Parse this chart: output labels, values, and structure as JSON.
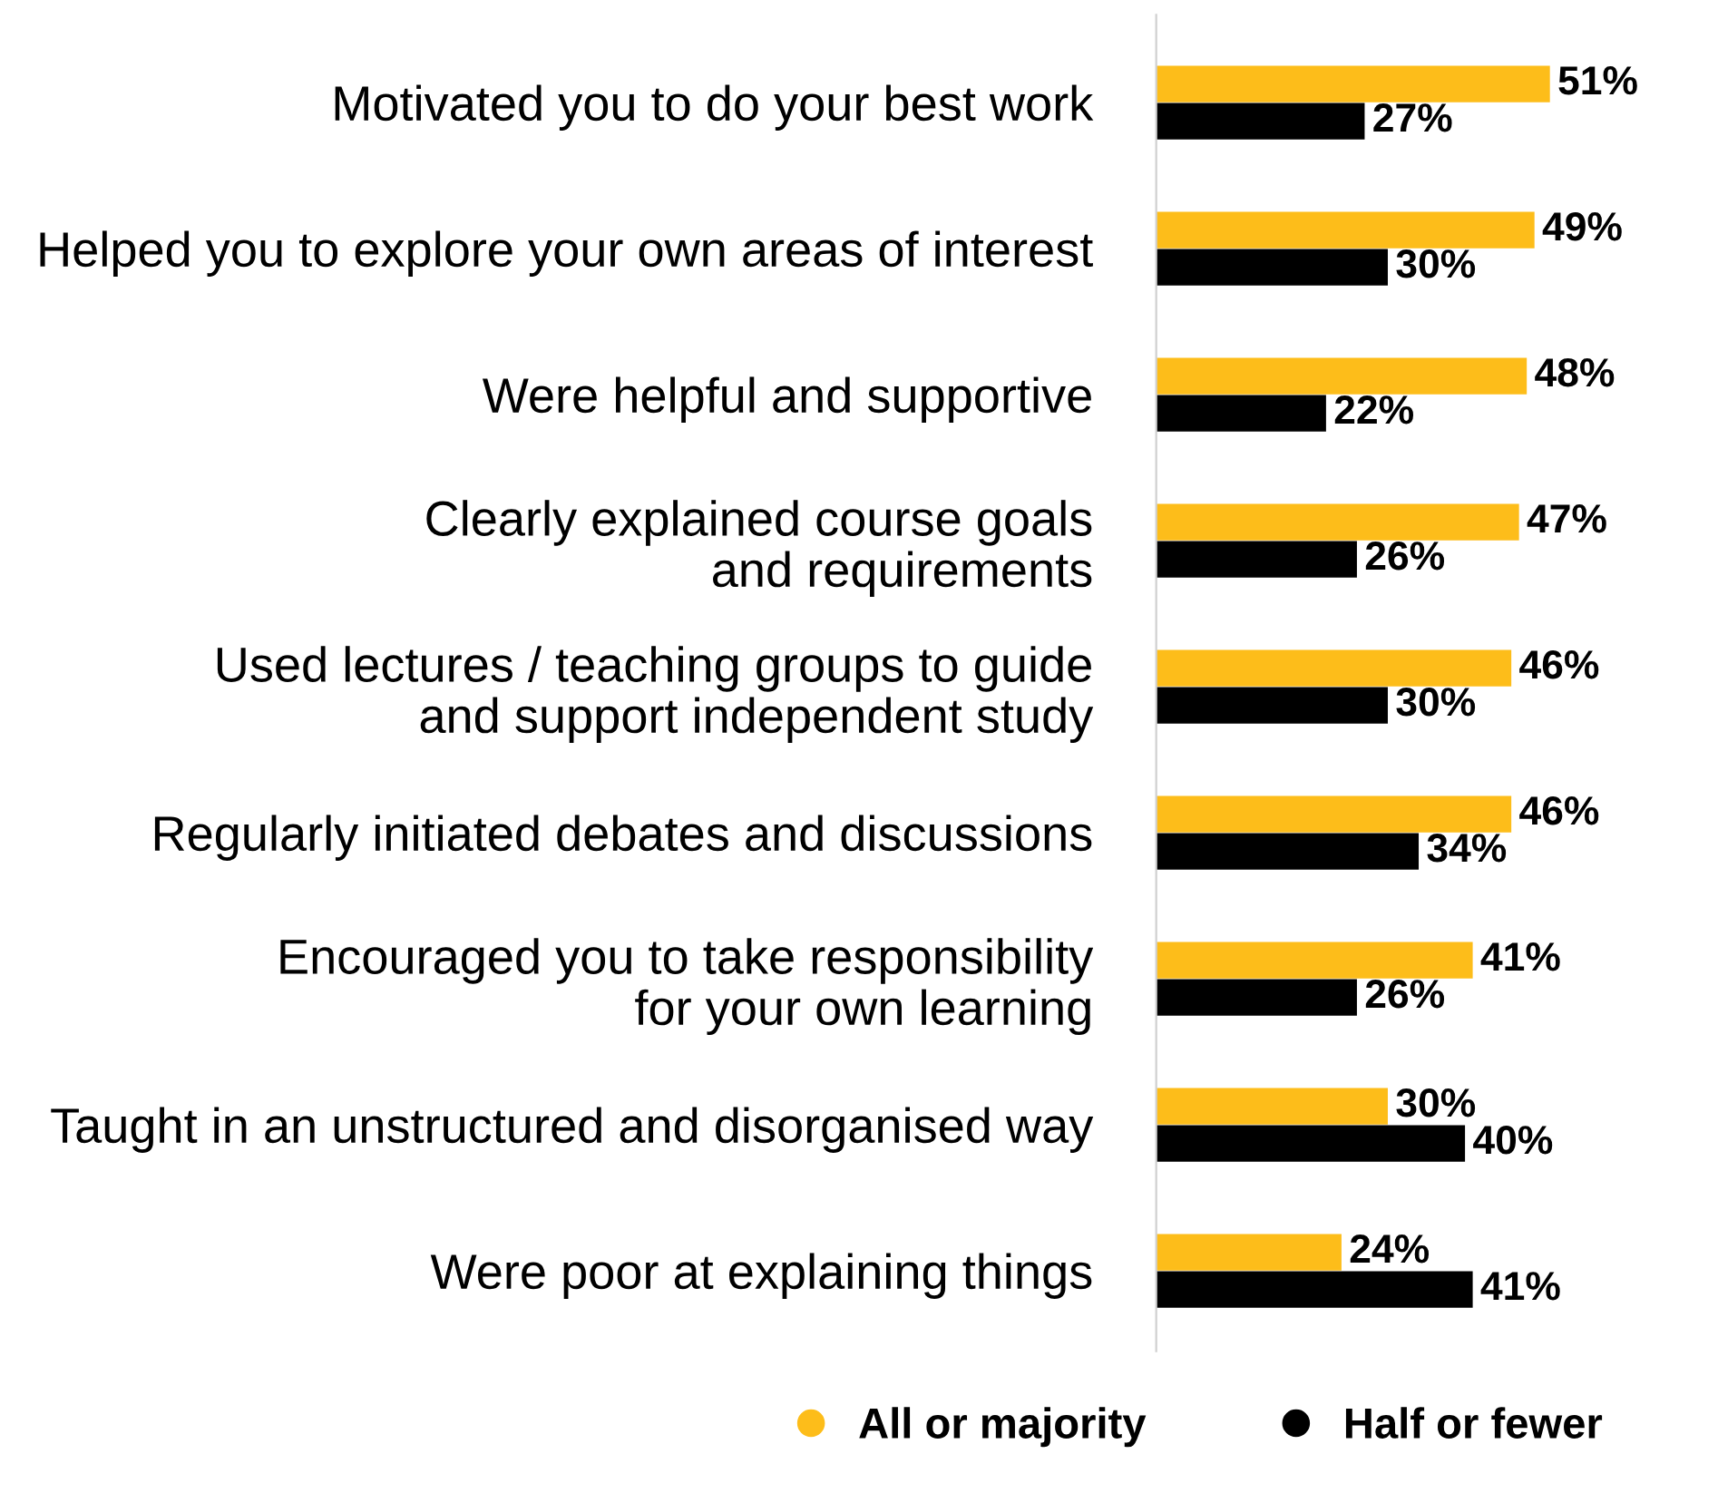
{
  "chart_data": {
    "type": "bar",
    "orientation": "horizontal",
    "categories": [
      "Motivated you to do your best work",
      "Helped you to explore your own areas of interest",
      "Were helpful and supportive",
      "Clearly explained course goals\nand requirements",
      "Used lectures / teaching groups to guide\nand support independent study",
      "Regularly initiated debates and discussions",
      "Encouraged you to take responsibility\nfor your own learning",
      "Taught in an unstructured and disorganised way",
      "Were poor at explaining things"
    ],
    "series": [
      {
        "name": "All or majority",
        "color": "#fdbd1a",
        "values": [
          51,
          49,
          48,
          47,
          46,
          46,
          41,
          30,
          24
        ],
        "value_labels": [
          "51%",
          "49%",
          "48%",
          "47%",
          "46%",
          "46%",
          "41%",
          "30%",
          "24%"
        ]
      },
      {
        "name": "Half or fewer",
        "color": "#000000",
        "values": [
          27,
          30,
          22,
          26,
          30,
          34,
          26,
          40,
          41
        ],
        "value_labels": [
          "27%",
          "30%",
          "22%",
          "26%",
          "30%",
          "34%",
          "26%",
          "40%",
          "41%"
        ]
      }
    ],
    "legend": "bottom",
    "grid": false
  }
}
